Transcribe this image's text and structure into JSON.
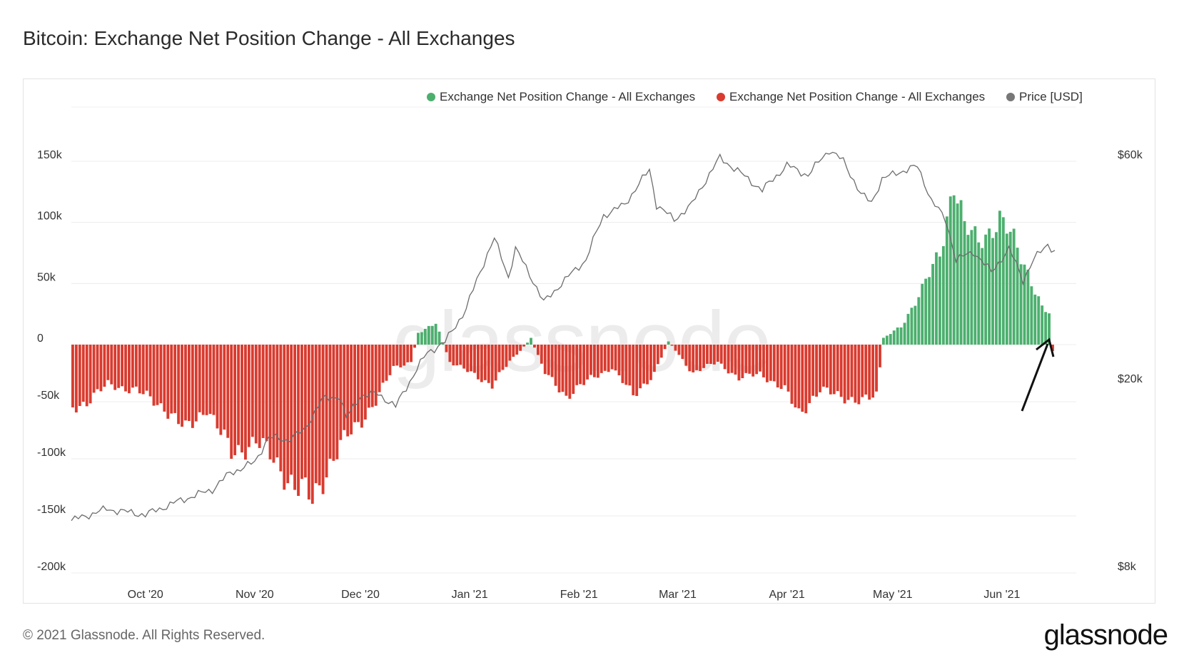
{
  "title": "Bitcoin: Exchange Net Position Change - All Exchanges",
  "legend": [
    {
      "label": "Exchange Net Position Change - All Exchanges",
      "color": "#4caf6e"
    },
    {
      "label": "Exchange Net Position Change - All Exchanges",
      "color": "#d93b2f"
    },
    {
      "label": "Price [USD]",
      "color": "#777777"
    }
  ],
  "footer": "© 2021 Glassnode. All Rights Reserved.",
  "logo": "glassnode",
  "watermark": "glassnode",
  "chart_data": {
    "type": "bar",
    "title": "Bitcoin: Exchange Net Position Change - All Exchanges",
    "x_range": [
      "2020-09-10",
      "2021-06-16"
    ],
    "x_ticks": [
      "Oct '20",
      "Nov '20",
      "Dec '20",
      "Jan '21",
      "Feb '21",
      "Mar '21",
      "Apr '21",
      "May '21",
      "Jun '21"
    ],
    "y_left_ticks": [
      "150k",
      "100k",
      "50k",
      "0",
      "-50k",
      "-100k",
      "-150k",
      "-200k"
    ],
    "y_left_range": [
      -200000,
      150000
    ],
    "y_right_ticks": [
      "$60k",
      "$20k",
      "$8k"
    ],
    "y_right_scale": "log",
    "grid": true,
    "legend_position": "top-right",
    "net_position_change_anchors": [
      [
        "2020-09-10",
        -55000
      ],
      [
        "2020-09-14",
        -50000
      ],
      [
        "2020-09-20",
        -35000
      ],
      [
        "2020-09-28",
        -40000
      ],
      [
        "2020-10-06",
        -55000
      ],
      [
        "2020-10-12",
        -75000
      ],
      [
        "2020-10-18",
        -55000
      ],
      [
        "2020-10-25",
        -95000
      ],
      [
        "2020-11-01",
        -85000
      ],
      [
        "2020-11-06",
        -100000
      ],
      [
        "2020-11-12",
        -125000
      ],
      [
        "2020-11-17",
        -135000
      ],
      [
        "2020-11-21",
        -110000
      ],
      [
        "2020-11-27",
        -80000
      ],
      [
        "2020-12-05",
        -50000
      ],
      [
        "2020-12-10",
        -20000
      ],
      [
        "2020-12-15",
        -15000
      ],
      [
        "2020-12-17",
        10000
      ],
      [
        "2020-12-22",
        18000
      ],
      [
        "2020-12-26",
        -15000
      ],
      [
        "2021-01-01",
        -25000
      ],
      [
        "2021-01-07",
        -35000
      ],
      [
        "2021-01-12",
        -15000
      ],
      [
        "2021-01-18",
        5000
      ],
      [
        "2021-01-22",
        -25000
      ],
      [
        "2021-01-28",
        -45000
      ],
      [
        "2021-02-04",
        -30000
      ],
      [
        "2021-02-10",
        -20000
      ],
      [
        "2021-02-16",
        -45000
      ],
      [
        "2021-02-22",
        -25000
      ],
      [
        "2021-02-26",
        3000
      ],
      [
        "2021-03-05",
        -25000
      ],
      [
        "2021-03-12",
        -15000
      ],
      [
        "2021-03-18",
        -30000
      ],
      [
        "2021-03-24",
        -25000
      ],
      [
        "2021-03-31",
        -40000
      ],
      [
        "2021-04-04",
        -60000
      ],
      [
        "2021-04-10",
        -40000
      ],
      [
        "2021-04-16",
        -45000
      ],
      [
        "2021-04-22",
        -50000
      ],
      [
        "2021-04-26",
        -45000
      ],
      [
        "2021-04-28",
        5000
      ],
      [
        "2021-05-03",
        15000
      ],
      [
        "2021-05-09",
        45000
      ],
      [
        "2021-05-14",
        75000
      ],
      [
        "2021-05-18",
        135000
      ],
      [
        "2021-05-21",
        95000
      ],
      [
        "2021-05-25",
        85000
      ],
      [
        "2021-05-31",
        102000
      ],
      [
        "2021-06-04",
        85000
      ],
      [
        "2021-06-08",
        60000
      ],
      [
        "2021-06-12",
        30000
      ],
      [
        "2021-06-14",
        25000
      ],
      [
        "2021-06-15",
        -5000
      ]
    ],
    "price_usd_anchors": [
      [
        "2020-09-10",
        10300
      ],
      [
        "2020-09-20",
        10900
      ],
      [
        "2020-10-01",
        10600
      ],
      [
        "2020-10-10",
        11300
      ],
      [
        "2020-10-20",
        12000
      ],
      [
        "2020-10-25",
        13000
      ],
      [
        "2020-11-01",
        13700
      ],
      [
        "2020-11-05",
        15500
      ],
      [
        "2020-11-10",
        15300
      ],
      [
        "2020-11-15",
        16000
      ],
      [
        "2020-11-20",
        18600
      ],
      [
        "2020-11-25",
        19000
      ],
      [
        "2020-11-27",
        17000
      ],
      [
        "2020-12-01",
        19000
      ],
      [
        "2020-12-06",
        19200
      ],
      [
        "2020-12-11",
        18000
      ],
      [
        "2020-12-16",
        21000
      ],
      [
        "2020-12-20",
        23500
      ],
      [
        "2020-12-25",
        24700
      ],
      [
        "2020-12-31",
        29000
      ],
      [
        "2021-01-08",
        41000
      ],
      [
        "2021-01-12",
        34000
      ],
      [
        "2021-01-14",
        39000
      ],
      [
        "2021-01-22",
        30000
      ],
      [
        "2021-01-28",
        33500
      ],
      [
        "2021-02-03",
        37000
      ],
      [
        "2021-02-08",
        46000
      ],
      [
        "2021-02-14",
        48500
      ],
      [
        "2021-02-21",
        57500
      ],
      [
        "2021-02-23",
        48500
      ],
      [
        "2021-02-28",
        45000
      ],
      [
        "2021-03-05",
        48500
      ],
      [
        "2021-03-13",
        61000
      ],
      [
        "2021-03-17",
        58000
      ],
      [
        "2021-03-25",
        52000
      ],
      [
        "2021-04-01",
        58800
      ],
      [
        "2021-04-07",
        56000
      ],
      [
        "2021-04-13",
        63500
      ],
      [
        "2021-04-17",
        60000
      ],
      [
        "2021-04-22",
        51000
      ],
      [
        "2021-04-25",
        49000
      ],
      [
        "2021-04-28",
        55000
      ],
      [
        "2021-05-03",
        57000
      ],
      [
        "2021-05-08",
        58500
      ],
      [
        "2021-05-12",
        49500
      ],
      [
        "2021-05-16",
        45000
      ],
      [
        "2021-05-19",
        37000
      ],
      [
        "2021-05-24",
        38500
      ],
      [
        "2021-05-29",
        34800
      ],
      [
        "2021-06-03",
        39000
      ],
      [
        "2021-06-07",
        33500
      ],
      [
        "2021-06-10",
        37000
      ],
      [
        "2021-06-14",
        40000
      ],
      [
        "2021-06-16",
        38500
      ]
    ]
  }
}
